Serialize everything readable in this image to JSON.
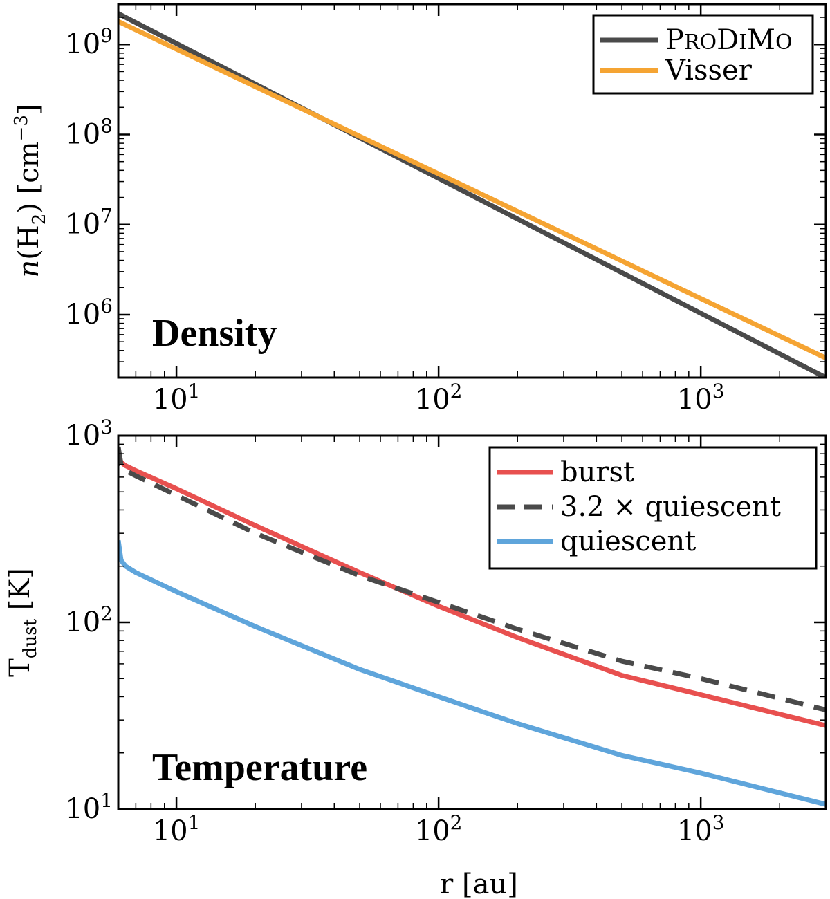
{
  "chart_data": [
    {
      "type": "line",
      "title": "Density",
      "xscale": "log",
      "yscale": "log",
      "xlim": [
        6,
        3000
      ],
      "ylim": [
        200000,
        2800000000
      ],
      "xticks": [
        {
          "value": 10,
          "base": "10",
          "exp": "1"
        },
        {
          "value": 100,
          "base": "10",
          "exp": "2"
        },
        {
          "value": 1000,
          "base": "10",
          "exp": "3"
        }
      ],
      "yticks": [
        {
          "value": 1000000,
          "base": "10",
          "exp": "6"
        },
        {
          "value": 10000000,
          "base": "10",
          "exp": "7"
        },
        {
          "value": 100000000,
          "base": "10",
          "exp": "8"
        },
        {
          "value": 1000000000,
          "base": "10",
          "exp": "9"
        }
      ],
      "ylabel": {
        "prefix": "n(H",
        "sub": "2",
        "mid": ") [cm",
        "sup": "−3",
        "suffix": "]"
      },
      "xlabel": "",
      "legend": "top-right",
      "series": [
        {
          "name": "ProDiMo",
          "name_parts": [
            "P",
            "RO",
            "D",
            "I",
            "M",
            "O"
          ],
          "color": "#4a4a4a",
          "dash": "",
          "x": [
            6,
            3000
          ],
          "y": [
            2200000000,
            200000
          ]
        },
        {
          "name": "Visser",
          "color": "#f5a433",
          "dash": "",
          "x": [
            6,
            3000
          ],
          "y": [
            1800000000,
            330000
          ]
        }
      ]
    },
    {
      "type": "line",
      "title": "Temperature",
      "xscale": "log",
      "yscale": "log",
      "xlim": [
        6,
        3000
      ],
      "ylim": [
        10,
        1000
      ],
      "xticks": [
        {
          "value": 10,
          "base": "10",
          "exp": "1"
        },
        {
          "value": 100,
          "base": "10",
          "exp": "2"
        },
        {
          "value": 1000,
          "base": "10",
          "exp": "3"
        }
      ],
      "yticks": [
        {
          "value": 10,
          "base": "10",
          "exp": "1"
        },
        {
          "value": 100,
          "base": "10",
          "exp": "2"
        },
        {
          "value": 1000,
          "base": "10",
          "exp": "3"
        }
      ],
      "ylabel": {
        "prefix": "T",
        "sub": "dust",
        "mid": " [K]",
        "sup": "",
        "suffix": ""
      },
      "xlabel": "r [au]",
      "legend": "top-right",
      "series": [
        {
          "name": "burst",
          "color": "#e8504f",
          "dash": "",
          "x": [
            6,
            6.15,
            6.4,
            7,
            10,
            20,
            50,
            100,
            200,
            500,
            1000,
            3000
          ],
          "y": [
            800,
            720,
            690,
            650,
            520,
            330,
            185,
            122,
            83,
            52,
            41,
            28
          ]
        },
        {
          "name": "3.2 × quiescent",
          "color": "#4a4a4a",
          "dash": "26 16",
          "x": [
            6,
            6.15,
            6.4,
            7,
            10,
            20,
            50,
            100,
            200,
            500,
            1000,
            3000
          ],
          "y": [
            870,
            700,
            650,
            610,
            480,
            300,
            178,
            128,
            92,
            62,
            50,
            34
          ]
        },
        {
          "name": "quiescent",
          "color": "#5fa5db",
          "dash": "",
          "x": [
            6,
            6.15,
            6.4,
            7,
            10,
            20,
            50,
            100,
            200,
            500,
            1000,
            3000
          ],
          "y": [
            275,
            215,
            200,
            185,
            146,
            95,
            56,
            40,
            28.7,
            19.4,
            15.6,
            10.6
          ]
        }
      ]
    }
  ]
}
